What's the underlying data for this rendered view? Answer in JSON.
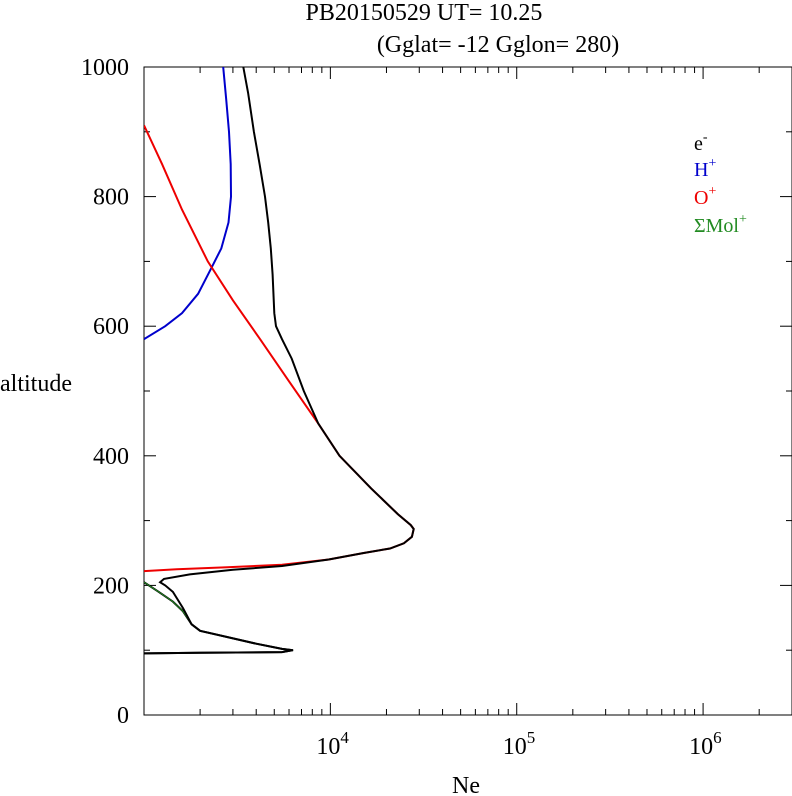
{
  "header": {
    "line1": "PB20150529   UT=  10.25",
    "line2": "(Gglat= -12   Gglon=  280)"
  },
  "chart_data": {
    "type": "line",
    "title": "PB20150529   UT=  10.25",
    "subtitle": "(Gglat= -12   Gglon=  280)",
    "xlabel": "Ne",
    "ylabel": "altitude",
    "x_scale": "log",
    "xlim": [
      1000,
      3000000
    ],
    "ylim": [
      0,
      1000
    ],
    "grid": false,
    "legend_position": "top-right",
    "x_ticks": [
      {
        "value": 10000,
        "base": "10",
        "exp": "4"
      },
      {
        "value": 100000,
        "base": "10",
        "exp": "5"
      },
      {
        "value": 1000000,
        "base": "10",
        "exp": "6"
      }
    ],
    "y_ticks": [
      0,
      200,
      400,
      600,
      800,
      1000
    ],
    "series": [
      {
        "name": "e-",
        "label_base": "e",
        "label_sup": "-",
        "color": "#000000",
        "legend_color": "#000000",
        "points": [
          [
            3410,
            1000
          ],
          [
            3620,
            960
          ],
          [
            3890,
            900
          ],
          [
            4170,
            850
          ],
          [
            4460,
            800
          ],
          [
            4640,
            760
          ],
          [
            4790,
            720
          ],
          [
            4900,
            680
          ],
          [
            5000,
            620
          ],
          [
            5110,
            600
          ],
          [
            5500,
            580
          ],
          [
            6200,
            550
          ],
          [
            7200,
            500
          ],
          [
            8600,
            450
          ],
          [
            11200,
            400
          ],
          [
            16500,
            350
          ],
          [
            23000,
            310
          ],
          [
            27000,
            293
          ],
          [
            28000,
            287
          ],
          [
            27400,
            275
          ],
          [
            24800,
            265
          ],
          [
            20900,
            257
          ],
          [
            15100,
            250
          ],
          [
            9800,
            240
          ],
          [
            5500,
            230
          ],
          [
            3000,
            224
          ],
          [
            1760,
            217
          ],
          [
            1280,
            210
          ],
          [
            1220,
            205
          ],
          [
            1300,
            200
          ],
          [
            1430,
            190
          ],
          [
            1620,
            165
          ],
          [
            1800,
            140
          ],
          [
            2000,
            130
          ],
          [
            4000,
            110
          ],
          [
            5500,
            102
          ],
          [
            6300,
            100
          ],
          [
            5500,
            97
          ],
          [
            2000,
            96
          ],
          [
            1000,
            95
          ]
        ]
      },
      {
        "name": "H+",
        "label_base": "H",
        "label_sup": "+",
        "color": "#0000cc",
        "legend_color": "#0000cc",
        "points": [
          [
            2660,
            1000
          ],
          [
            2760,
            950
          ],
          [
            2860,
            900
          ],
          [
            2920,
            850
          ],
          [
            2930,
            800
          ],
          [
            2840,
            760
          ],
          [
            2600,
            720
          ],
          [
            2300,
            690
          ],
          [
            1950,
            650
          ],
          [
            1600,
            620
          ],
          [
            1300,
            600
          ],
          [
            1000,
            580
          ]
        ]
      },
      {
        "name": "O+",
        "label_base": "O",
        "label_sup": "+",
        "color": "#ee0000",
        "legend_color": "#ee0000",
        "points": [
          [
            1000,
            910
          ],
          [
            1250,
            850
          ],
          [
            1600,
            780
          ],
          [
            2200,
            700
          ],
          [
            3000,
            640
          ],
          [
            4200,
            580
          ],
          [
            6000,
            515
          ],
          [
            8600,
            450
          ],
          [
            11200,
            400
          ],
          [
            16500,
            350
          ],
          [
            23000,
            310
          ],
          [
            27000,
            293
          ],
          [
            28000,
            287
          ],
          [
            27400,
            275
          ],
          [
            24800,
            265
          ],
          [
            20900,
            257
          ],
          [
            15100,
            250
          ],
          [
            9800,
            240
          ],
          [
            5500,
            232
          ],
          [
            2800,
            228
          ],
          [
            1500,
            225
          ],
          [
            1000,
            222
          ]
        ]
      },
      {
        "name": "ΣMol+",
        "label_base": "ΣMol",
        "label_sup": "+",
        "color": "#000000",
        "legend_color": "#228b22",
        "points": [
          [
            1000,
            205
          ],
          [
            1200,
            190
          ],
          [
            1430,
            175
          ],
          [
            1620,
            160
          ],
          [
            1800,
            140
          ],
          [
            2000,
            130
          ],
          [
            4000,
            110
          ],
          [
            5500,
            102
          ],
          [
            6300,
            100
          ],
          [
            5500,
            97
          ],
          [
            2000,
            96
          ],
          [
            1000,
            95
          ]
        ]
      }
    ]
  }
}
